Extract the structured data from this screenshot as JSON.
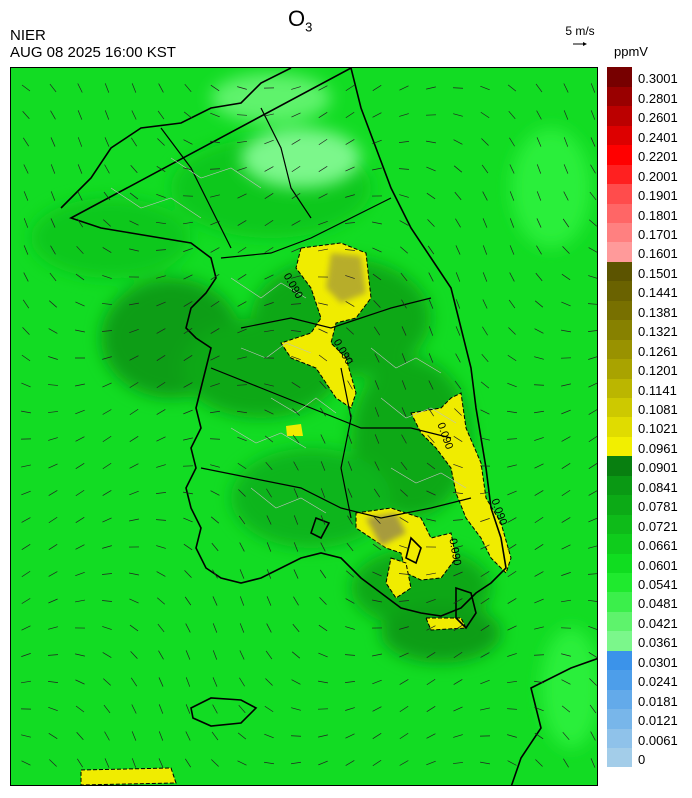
{
  "header": {
    "org": "NIER",
    "datetime": "AUG 08 2025 16:00 KST",
    "species": "O",
    "species_sub": "3",
    "ref_vector": "5 m/s",
    "unit": "ppmV"
  },
  "legend": {
    "labels": [
      "0",
      "0.0061",
      "0.0121",
      "0.0181",
      "0.0241",
      "0.0301",
      "0.0361",
      "0.0421",
      "0.0481",
      "0.0541",
      "0.0601",
      "0.0661",
      "0.0721",
      "0.0781",
      "0.0841",
      "0.0901",
      "0.0961",
      "0.1021",
      "0.1081",
      "0.1141",
      "0.1201",
      "0.1261",
      "0.1321",
      "0.1381",
      "0.1441",
      "0.1501",
      "0.1601",
      "0.1701",
      "0.1801",
      "0.1901",
      "0.2001",
      "0.2201",
      "0.2401",
      "0.2601",
      "0.2801",
      "0.3001"
    ],
    "colors": [
      "#a3cde9",
      "#8fc2ea",
      "#78b6ea",
      "#63aaea",
      "#4d9eea",
      "#3b93ea",
      "#7bf78b",
      "#5ef36c",
      "#3bef4b",
      "#1fea2e",
      "#10dd20",
      "#0fcc1c",
      "#0ebb19",
      "#0caa16",
      "#0a9914",
      "#087f10",
      "#f2ef00",
      "#e0dc00",
      "#cdc900",
      "#bbb600",
      "#a9a300",
      "#999200",
      "#878100",
      "#787000",
      "#6a6200",
      "#5c5400",
      "#ff9a9a",
      "#ff8080",
      "#ff6666",
      "#ff4c4c",
      "#ff2020",
      "#ff0000",
      "#dd0000",
      "#bb0000",
      "#990000",
      "#770000"
    ]
  },
  "map": {
    "contour_labels": [
      "0.090",
      "0.090",
      "0.090",
      "0.090",
      "0.090"
    ],
    "description_colors": {
      "background": "#11dd22",
      "dark": "#0b9a18",
      "light": "#7bf78b",
      "high": "#f2ef00",
      "higher": "#c8c000"
    }
  }
}
